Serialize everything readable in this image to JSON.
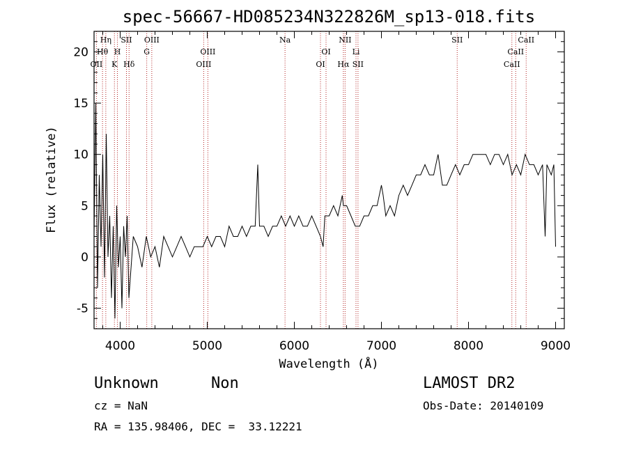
{
  "chart_data": {
    "type": "line",
    "title": "spec-56667-HD085234N322826M_sp13-018.fits",
    "xlabel": "Wavelength (Å)",
    "ylabel": "Flux (relative)",
    "xlim": [
      3700,
      9100
    ],
    "ylim": [
      -7,
      22
    ],
    "xticks": [
      4000,
      5000,
      6000,
      7000,
      8000,
      9000
    ],
    "yticks": [
      -5,
      0,
      5,
      10,
      15,
      20
    ],
    "series": [
      {
        "x": [
          3700,
          3720,
          3740,
          3760,
          3780,
          3800,
          3820,
          3840,
          3860,
          3880,
          3900,
          3920,
          3940,
          3960,
          3980,
          4000,
          4020,
          4040,
          4060,
          4080,
          4100,
          4150,
          4200,
          4250,
          4300,
          4350,
          4400,
          4450,
          4500,
          4550,
          4600,
          4650,
          4700,
          4750,
          4800,
          4850,
          4900,
          4950,
          5000,
          5050,
          5100,
          5150,
          5200,
          5250,
          5300,
          5350,
          5400,
          5450,
          5500,
          5550,
          5580,
          5600,
          5650,
          5700,
          5750,
          5800,
          5850,
          5900,
          5950,
          6000,
          6050,
          6100,
          6150,
          6200,
          6250,
          6300,
          6330,
          6350,
          6400,
          6450,
          6500,
          6550,
          6563,
          6600,
          6650,
          6700,
          6750,
          6800,
          6850,
          6900,
          6950,
          7000,
          7020,
          7050,
          7100,
          7150,
          7200,
          7250,
          7300,
          7350,
          7400,
          7450,
          7500,
          7550,
          7600,
          7650,
          7700,
          7750,
          7800,
          7850,
          7900,
          7950,
          8000,
          8050,
          8100,
          8150,
          8200,
          8250,
          8300,
          8350,
          8400,
          8450,
          8500,
          8550,
          8600,
          8650,
          8700,
          8750,
          8800,
          8850,
          8880,
          8900,
          8950,
          8980,
          9000
        ],
        "y": [
          2,
          15,
          -3,
          8,
          1,
          10,
          -2,
          12,
          0,
          4,
          -4,
          3,
          -6,
          5,
          -1,
          2,
          -5,
          3,
          0,
          4,
          -4,
          2,
          1,
          -1,
          2,
          0,
          1,
          -1,
          2,
          1,
          0,
          1,
          2,
          1,
          0,
          1,
          1,
          1,
          2,
          1,
          2,
          2,
          1,
          3,
          2,
          2,
          3,
          2,
          3,
          3,
          9,
          3,
          3,
          2,
          3,
          3,
          4,
          3,
          4,
          3,
          4,
          3,
          3,
          4,
          3,
          2,
          1,
          4,
          4,
          5,
          4,
          6,
          5,
          5,
          4,
          3,
          3,
          4,
          4,
          5,
          5,
          7,
          6,
          4,
          5,
          4,
          6,
          7,
          6,
          7,
          8,
          8,
          9,
          8,
          8,
          10,
          7,
          7,
          8,
          9,
          8,
          9,
          9,
          10,
          10,
          10,
          10,
          9,
          10,
          10,
          9,
          10,
          8,
          9,
          8,
          10,
          9,
          9,
          8,
          9,
          2,
          9,
          8,
          9,
          1
        ]
      }
    ],
    "grid": false,
    "line_markers": [
      {
        "label": "Hη",
        "x": 3835,
        "row": 0
      },
      {
        "label": "Hθ",
        "x": 3797,
        "row": 1
      },
      {
        "label": "OII",
        "x": 3727,
        "row": 2
      },
      {
        "label": "SII",
        "x": 4072,
        "row": 0
      },
      {
        "label": "H",
        "x": 3968,
        "row": 1
      },
      {
        "label": "K",
        "x": 3934,
        "row": 2
      },
      {
        "label": "Hδ",
        "x": 4102,
        "row": 2
      },
      {
        "label": "OIII",
        "x": 4363,
        "row": 0
      },
      {
        "label": "G",
        "x": 4305,
        "row": 1
      },
      {
        "label": "OIII",
        "x": 5007,
        "row": 1
      },
      {
        "label": "OIII",
        "x": 4959,
        "row": 2
      },
      {
        "label": "Na",
        "x": 5893,
        "row": 0
      },
      {
        "label": "OI",
        "x": 6364,
        "row": 1
      },
      {
        "label": "OI",
        "x": 6300,
        "row": 2
      },
      {
        "label": "NII",
        "x": 6583,
        "row": 0
      },
      {
        "label": "Hα",
        "x": 6563,
        "row": 2
      },
      {
        "label": "Li",
        "x": 6708,
        "row": 1
      },
      {
        "label": "SII",
        "x": 6731,
        "row": 2
      },
      {
        "label": "SII",
        "x": 7870,
        "row": 0
      },
      {
        "label": "CaII",
        "x": 8662,
        "row": 0
      },
      {
        "label": "CaII",
        "x": 8542,
        "row": 1
      },
      {
        "label": "CaII",
        "x": 8498,
        "row": 2
      }
    ]
  },
  "info": {
    "class": "Unknown",
    "subclass": "Non",
    "survey": "LAMOST DR2",
    "cz": "cz = NaN",
    "obs_date": "Obs-Date: 20140109",
    "coords": "RA = 135.98406, DEC =  33.12221"
  },
  "colors": {
    "line_marker": "#b22222",
    "spectrum": "#000000"
  }
}
